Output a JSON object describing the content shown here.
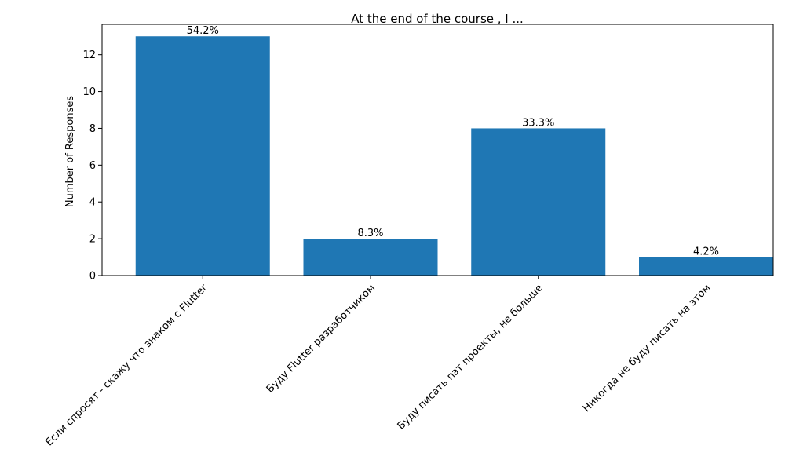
{
  "chart_data": {
    "type": "bar",
    "title": "At the end of the course , I ...",
    "xlabel": "",
    "ylabel": "Number of Responses",
    "categories": [
      "Если спросят - скажу что знаком с Flutter",
      "Буду Flutter разработчиком",
      "Буду писать пэт проекты, не больше",
      "Никогда не буду писать на этом"
    ],
    "values": [
      13,
      2,
      8,
      1
    ],
    "data_labels": [
      "54.2%",
      "8.3%",
      "33.3%",
      "4.2%"
    ],
    "ylim": [
      0,
      13.65
    ],
    "yticks": [
      0,
      2,
      4,
      6,
      8,
      10,
      12
    ],
    "grid": false,
    "bar_color": "#1f77b4"
  }
}
